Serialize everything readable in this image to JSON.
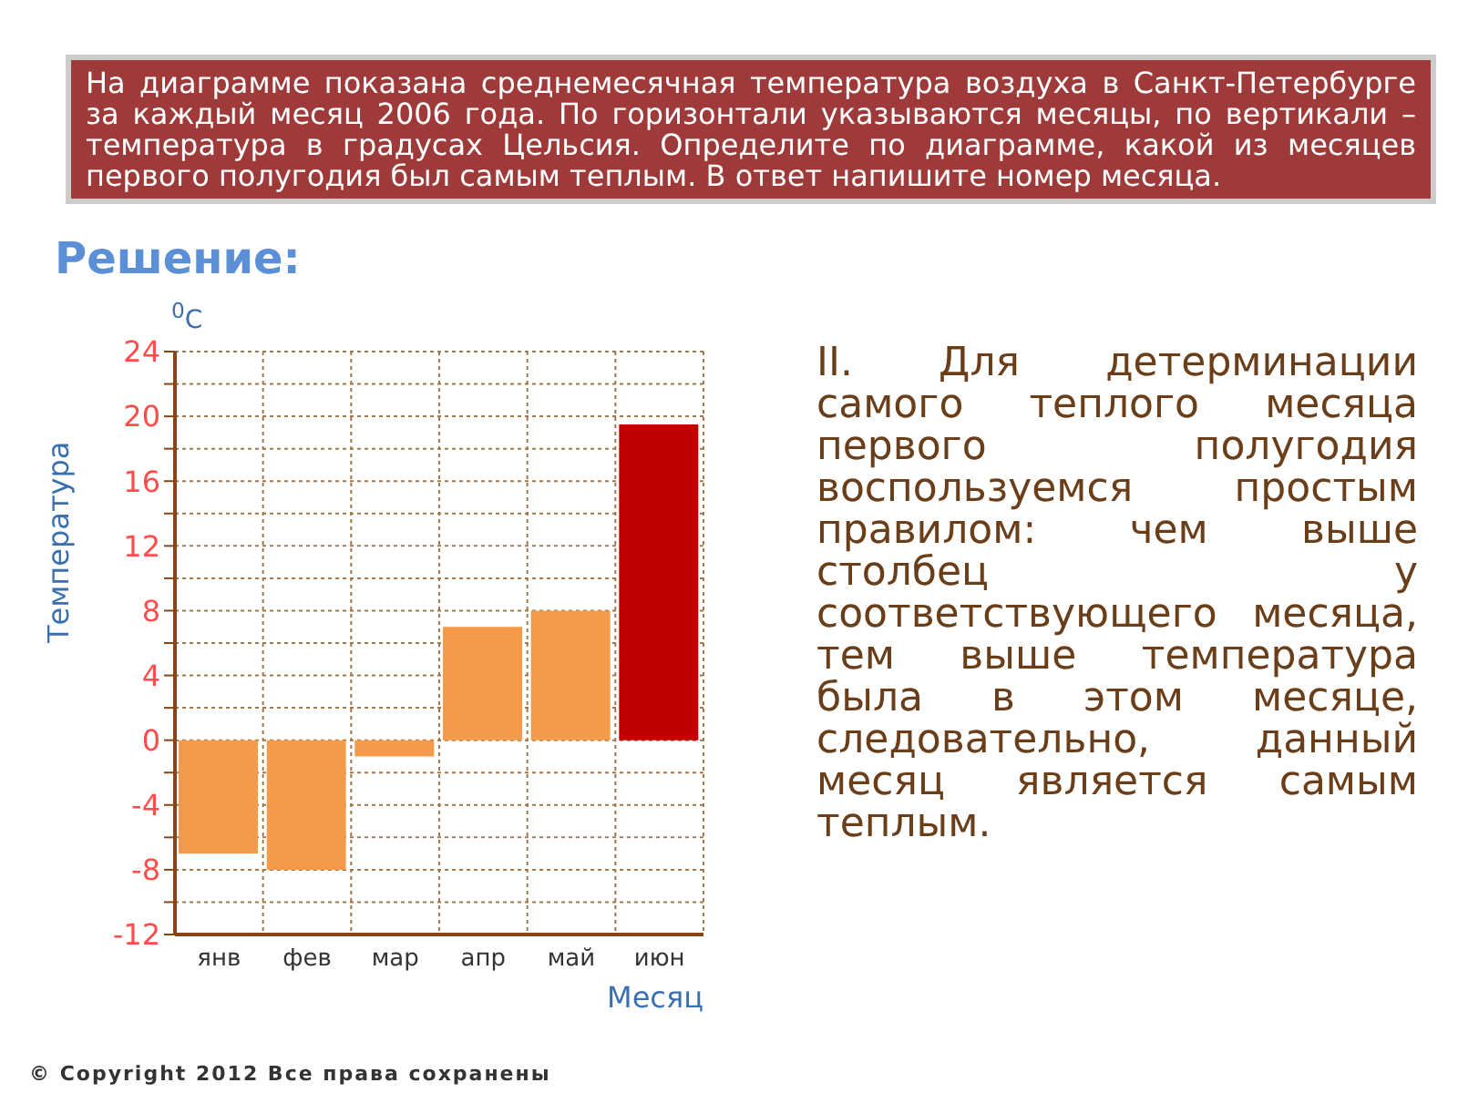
{
  "chart_data": {
    "type": "bar",
    "title": "На диаграмме показана среднемесячная температура воздуха в Санкт-Петербурге за каждый месяц 2006 года. По горизонтали указываются месяцы, по вертикали – температура в градусах Цельсия.  Определите по диаграмме, какой из месяцев первого полугодия был самым теплым. В ответ напишите номер месяца.",
    "subtitle": "Решение:",
    "ylabel": "Температура",
    "xlabel": "Месяц",
    "categories": [
      "янв",
      "фев",
      "мар",
      "апр",
      "май",
      "июн"
    ],
    "values": [
      -7,
      -8,
      -1,
      7,
      8,
      19.5
    ],
    "colors": [
      "#f59a4a",
      "#f59a4a",
      "#f59a4a",
      "#f59a4a",
      "#f59a4a",
      "#c00000"
    ],
    "ylim": [
      -12,
      24
    ],
    "yticks": [
      -12,
      {
        "value": -10,
        "label": null
      },
      -8,
      {
        "value": -6,
        "label": null
      },
      -4,
      {
        "value": -2,
        "label": null
      },
      0,
      {
        "value": 2,
        "label": null
      },
      4,
      {
        "value": 6,
        "label": null
      },
      8,
      {
        "value": 10,
        "label": null
      },
      12,
      {
        "value": 14,
        "label": null
      },
      16,
      {
        "value": 18,
        "label": null
      },
      20,
      {
        "value": 22,
        "label": null
      },
      24
    ],
    "grid": true,
    "annotations": [
      "$^{0}$C",
      "II. Для детерминации самого теплого месяца первого полугодия воспользуемся простым правилом: чем выше столбец у соответствующего месяца, тем выше температура была в этом месяце, следовательно, данный месяц является самым теплым.",
      "© Copyright 2012 Все права сохранены"
    ]
  }
}
